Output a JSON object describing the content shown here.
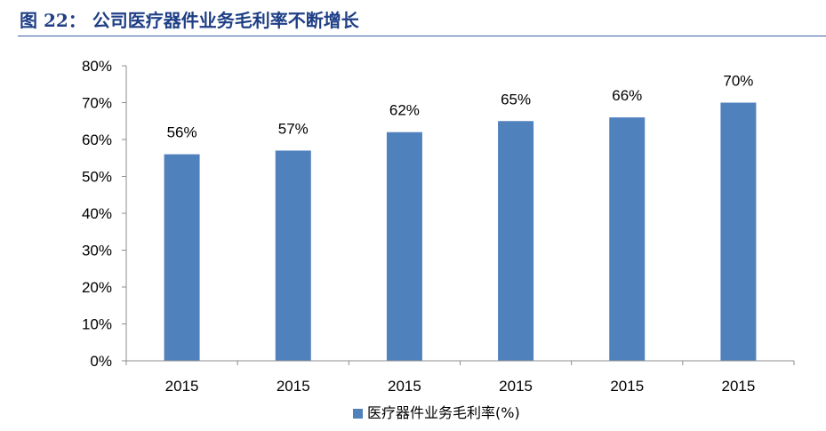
{
  "header": {
    "figure_title": "图 22：  公司医疗器件业务毛利率不断增长"
  },
  "colors": {
    "title": "#1f3f86",
    "rule": "#3d5fa5",
    "bar": "#4f81bd",
    "axis": "#8c8c8c"
  },
  "chart_data": {
    "type": "bar",
    "title": "",
    "xlabel": "",
    "ylabel": "",
    "categories": [
      "2015",
      "2015",
      "2015",
      "2015",
      "2015",
      "2015"
    ],
    "series": [
      {
        "name": "医疗器件业务毛利率(%)",
        "values": [
          56,
          57,
          62,
          65,
          66,
          70
        ],
        "labels": [
          "56%",
          "57%",
          "62%",
          "65%",
          "66%",
          "70%"
        ]
      }
    ],
    "ylim": [
      0,
      80
    ],
    "yticks": [
      0,
      10,
      20,
      30,
      40,
      50,
      60,
      70,
      80
    ],
    "ytick_labels": [
      "0%",
      "10%",
      "20%",
      "30%",
      "40%",
      "50%",
      "60%",
      "70%",
      "80%"
    ],
    "grid": false,
    "legend_position": "bottom-center"
  }
}
